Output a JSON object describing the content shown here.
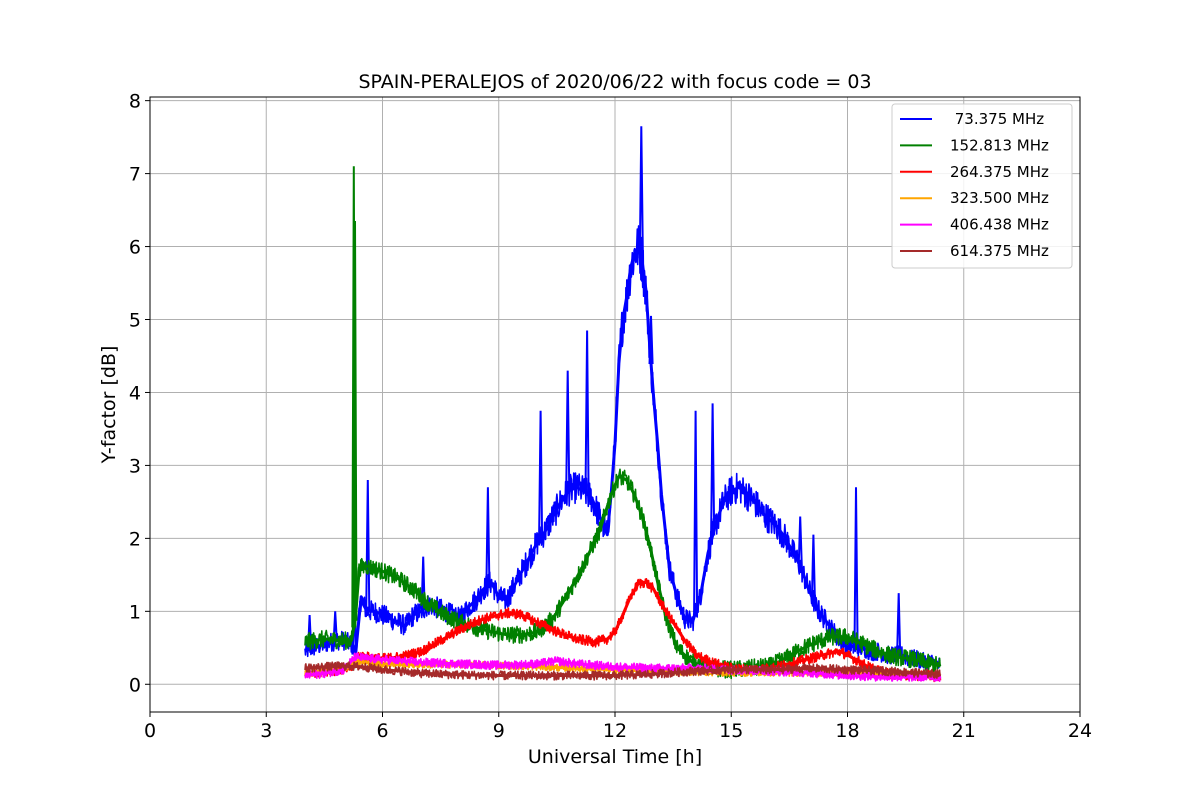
{
  "chart_data": {
    "type": "line",
    "title": "SPAIN-PERALEJOS of 2020/06/22 with focus code = 03",
    "xlabel": "Universal Time [h]",
    "ylabel": "Y-factor [dB]",
    "xlim": [
      0,
      24
    ],
    "ylim": [
      -0.38,
      8.05
    ],
    "xticks": [
      0,
      3,
      6,
      9,
      12,
      15,
      18,
      21,
      24
    ],
    "yticks": [
      0,
      1,
      2,
      3,
      4,
      5,
      6,
      7,
      8
    ],
    "xtick_labels": [
      "0",
      "3",
      "6",
      "9",
      "12",
      "15",
      "18",
      "21",
      "24"
    ],
    "ytick_labels": [
      "0",
      "1",
      "2",
      "3",
      "4",
      "5",
      "6",
      "7",
      "8"
    ],
    "grid": true,
    "legend_position": "top-right",
    "series": [
      {
        "name": " 73.375 MHz",
        "color": "#0000ff",
        "x": [
          4.0,
          4.2,
          4.5,
          4.8,
          5.0,
          5.2,
          5.3,
          5.45,
          5.5,
          5.6,
          5.8,
          6.0,
          6.2,
          6.4,
          6.6,
          6.8,
          7.0,
          7.2,
          7.4,
          7.6,
          7.8,
          8.0,
          8.2,
          8.4,
          8.6,
          8.8,
          9.0,
          9.2,
          9.4,
          9.6,
          9.8,
          10.0,
          10.2,
          10.4,
          10.6,
          10.8,
          11.0,
          11.2,
          11.4,
          11.6,
          11.8,
          11.9,
          12.0,
          12.1,
          12.2,
          12.3,
          12.4,
          12.5,
          12.6,
          12.7,
          12.8,
          12.9,
          13.0,
          13.1,
          13.2,
          13.3,
          13.4,
          13.6,
          13.8,
          14.0,
          14.2,
          14.4,
          14.6,
          14.8,
          15.0,
          15.2,
          15.4,
          15.6,
          15.8,
          16.0,
          16.2,
          16.4,
          16.6,
          16.8,
          17.0,
          17.2,
          17.4,
          17.6,
          17.8,
          18.0,
          18.2,
          18.4,
          18.6,
          18.8,
          19.0,
          19.2,
          19.4,
          19.6,
          19.8,
          20.0,
          20.2,
          20.4
        ],
        "y": [
          0.45,
          0.5,
          0.55,
          0.6,
          0.6,
          0.55,
          0.4,
          1.2,
          1.1,
          1.0,
          1.0,
          0.95,
          0.9,
          0.85,
          0.8,
          0.95,
          1.0,
          1.1,
          1.05,
          1.0,
          0.95,
          0.9,
          1.05,
          1.15,
          1.3,
          1.4,
          1.2,
          1.15,
          1.35,
          1.55,
          1.75,
          1.95,
          2.1,
          2.3,
          2.5,
          2.65,
          2.7,
          2.65,
          2.55,
          2.3,
          2.05,
          2.6,
          3.3,
          4.4,
          5.0,
          5.3,
          5.7,
          5.9,
          6.0,
          5.8,
          5.4,
          4.6,
          3.9,
          3.3,
          2.6,
          2.1,
          1.6,
          1.2,
          0.9,
          0.85,
          1.2,
          1.8,
          2.2,
          2.5,
          2.65,
          2.7,
          2.6,
          2.5,
          2.35,
          2.25,
          2.15,
          2.0,
          1.8,
          1.6,
          1.3,
          1.05,
          0.9,
          0.75,
          0.6,
          0.55,
          0.5,
          0.5,
          0.45,
          0.45,
          0.4,
          0.4,
          0.4,
          0.35,
          0.35,
          0.3,
          0.3,
          0.25
        ]
      },
      {
        "name": "152.813 MHz",
        "color": "#008000",
        "x": [
          4.0,
          4.5,
          5.0,
          5.2,
          5.3,
          5.4,
          5.6,
          6.0,
          6.4,
          6.8,
          7.2,
          7.6,
          8.0,
          8.4,
          8.8,
          9.2,
          9.6,
          10.0,
          10.4,
          10.8,
          11.2,
          11.6,
          11.9,
          12.1,
          12.3,
          12.5,
          12.7,
          12.9,
          13.1,
          13.3,
          13.6,
          14.0,
          14.5,
          15.0,
          15.5,
          16.0,
          16.4,
          16.8,
          17.2,
          17.6,
          18.0,
          18.4,
          18.8,
          19.2,
          19.6,
          20.0,
          20.4
        ],
        "y": [
          0.58,
          0.62,
          0.6,
          0.6,
          0.9,
          1.6,
          1.62,
          1.55,
          1.45,
          1.3,
          1.1,
          0.95,
          0.85,
          0.78,
          0.72,
          0.68,
          0.68,
          0.72,
          0.9,
          1.25,
          1.65,
          2.1,
          2.6,
          2.85,
          2.8,
          2.6,
          2.3,
          1.9,
          1.4,
          0.95,
          0.5,
          0.3,
          0.22,
          0.2,
          0.22,
          0.25,
          0.35,
          0.48,
          0.58,
          0.65,
          0.65,
          0.55,
          0.45,
          0.38,
          0.35,
          0.3,
          0.25
        ]
      },
      {
        "name": "264.375 MHz",
        "color": "#ff0000",
        "x": [
          4.0,
          4.5,
          5.0,
          5.2,
          5.35,
          5.5,
          6.0,
          6.5,
          7.0,
          7.5,
          8.0,
          8.5,
          9.0,
          9.3,
          9.6,
          10.0,
          10.5,
          11.0,
          11.5,
          11.8,
          12.0,
          12.2,
          12.4,
          12.6,
          12.8,
          13.0,
          13.2,
          13.5,
          13.8,
          14.1,
          14.5,
          15.0,
          15.5,
          16.0,
          16.5,
          17.0,
          17.5,
          17.8,
          18.0,
          18.5,
          19.0,
          19.5,
          20.0,
          20.4
        ],
        "y": [
          0.15,
          0.18,
          0.2,
          0.22,
          0.4,
          0.38,
          0.35,
          0.38,
          0.45,
          0.6,
          0.75,
          0.88,
          0.95,
          0.98,
          0.95,
          0.85,
          0.72,
          0.62,
          0.58,
          0.62,
          0.72,
          0.95,
          1.2,
          1.38,
          1.4,
          1.3,
          1.1,
          0.85,
          0.6,
          0.4,
          0.3,
          0.22,
          0.2,
          0.22,
          0.28,
          0.35,
          0.42,
          0.45,
          0.4,
          0.25,
          0.15,
          0.12,
          0.12,
          0.1
        ]
      },
      {
        "name": "323.500 MHz",
        "color": "#ffa500",
        "x": [
          4.0,
          4.5,
          5.0,
          5.3,
          5.5,
          6.0,
          7.0,
          8.0,
          9.0,
          10.0,
          11.0,
          12.0,
          13.0,
          14.0,
          15.0,
          16.0,
          17.0,
          18.0,
          19.0,
          20.0,
          20.4
        ],
        "y": [
          0.15,
          0.18,
          0.2,
          0.32,
          0.3,
          0.28,
          0.27,
          0.27,
          0.26,
          0.24,
          0.22,
          0.2,
          0.18,
          0.17,
          0.16,
          0.16,
          0.16,
          0.15,
          0.14,
          0.13,
          0.12
        ]
      },
      {
        "name": "406.438 MHz",
        "color": "#ff00ff",
        "x": [
          4.0,
          4.5,
          5.0,
          5.3,
          5.5,
          6.0,
          7.0,
          8.0,
          9.0,
          10.0,
          10.5,
          11.0,
          12.0,
          13.0,
          14.0,
          15.0,
          16.0,
          17.0,
          18.0,
          19.0,
          20.0,
          20.4
        ],
        "y": [
          0.12,
          0.15,
          0.2,
          0.38,
          0.36,
          0.34,
          0.3,
          0.28,
          0.26,
          0.28,
          0.32,
          0.28,
          0.24,
          0.22,
          0.22,
          0.2,
          0.18,
          0.16,
          0.12,
          0.1,
          0.1,
          0.1
        ]
      },
      {
        "name": "614.375 MHz",
        "color": "#a52a2a",
        "x": [
          4.0,
          4.5,
          5.0,
          5.5,
          6.0,
          6.5,
          7.0,
          8.0,
          9.0,
          10.0,
          11.0,
          12.0,
          13.0,
          14.0,
          15.0,
          16.0,
          17.0,
          18.0,
          19.0,
          20.0,
          20.4
        ],
        "y": [
          0.22,
          0.24,
          0.25,
          0.24,
          0.2,
          0.18,
          0.15,
          0.13,
          0.12,
          0.12,
          0.12,
          0.12,
          0.14,
          0.18,
          0.2,
          0.2,
          0.22,
          0.2,
          0.18,
          0.15,
          0.14
        ]
      }
    ],
    "spikes": [
      {
        "series": 0,
        "x": 4.12,
        "y": 0.95
      },
      {
        "series": 0,
        "x": 4.78,
        "y": 1.0
      },
      {
        "series": 0,
        "x": 5.28,
        "y": 1.15
      },
      {
        "series": 0,
        "x": 5.62,
        "y": 2.8
      },
      {
        "series": 0,
        "x": 7.05,
        "y": 1.75
      },
      {
        "series": 0,
        "x": 8.72,
        "y": 2.7
      },
      {
        "series": 0,
        "x": 10.08,
        "y": 3.75
      },
      {
        "series": 0,
        "x": 10.78,
        "y": 4.3
      },
      {
        "series": 0,
        "x": 11.28,
        "y": 4.85
      },
      {
        "series": 0,
        "x": 12.68,
        "y": 7.65
      },
      {
        "series": 0,
        "x": 12.93,
        "y": 5.05
      },
      {
        "series": 0,
        "x": 14.08,
        "y": 3.75
      },
      {
        "series": 0,
        "x": 14.52,
        "y": 3.85
      },
      {
        "series": 0,
        "x": 16.78,
        "y": 2.3
      },
      {
        "series": 0,
        "x": 17.12,
        "y": 2.05
      },
      {
        "series": 0,
        "x": 18.22,
        "y": 2.7
      },
      {
        "series": 0,
        "x": 19.32,
        "y": 1.25
      },
      {
        "series": 1,
        "x": 5.26,
        "y": 7.1
      },
      {
        "series": 1,
        "x": 5.29,
        "y": 6.35
      }
    ]
  }
}
